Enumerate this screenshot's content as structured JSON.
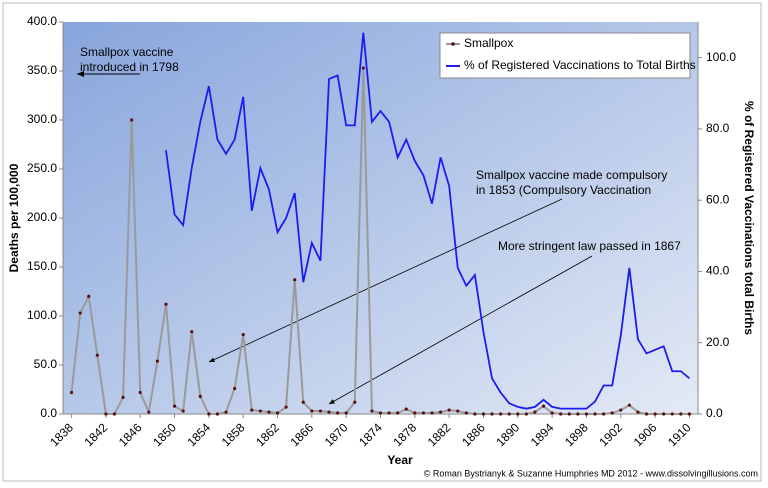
{
  "chart_data": {
    "type": "line",
    "x_label": "Year",
    "y_label": "Deaths per 100,000",
    "y2_label": "% of Registered Vaccinations total Births",
    "x": [
      1838,
      1839,
      1840,
      1841,
      1842,
      1843,
      1844,
      1845,
      1846,
      1847,
      1848,
      1849,
      1850,
      1851,
      1852,
      1853,
      1854,
      1855,
      1856,
      1857,
      1858,
      1859,
      1860,
      1861,
      1862,
      1863,
      1864,
      1865,
      1866,
      1867,
      1868,
      1869,
      1870,
      1871,
      1872,
      1873,
      1874,
      1875,
      1876,
      1877,
      1878,
      1879,
      1880,
      1881,
      1882,
      1883,
      1884,
      1885,
      1886,
      1887,
      1888,
      1889,
      1890,
      1891,
      1892,
      1893,
      1894,
      1895,
      1896,
      1897,
      1898,
      1899,
      1900,
      1901,
      1902,
      1903,
      1904,
      1905,
      1906,
      1907,
      1908,
      1909,
      1910
    ],
    "series": [
      {
        "name": "Smallpox",
        "color": "#9a9a9a",
        "marker_color": "#5a1010",
        "values": [
          22,
          103,
          120,
          60,
          0,
          0,
          17,
          300,
          22,
          2,
          54,
          112,
          8,
          3,
          84,
          18,
          0,
          0,
          2,
          26,
          81,
          4,
          3,
          2,
          1,
          7,
          137,
          12,
          3,
          3,
          2,
          1,
          1,
          12,
          353,
          3,
          1,
          1,
          1,
          5,
          1,
          1,
          1,
          2,
          4,
          3,
          1,
          0,
          0,
          0,
          0,
          0,
          0,
          0,
          2,
          8,
          1,
          0,
          0,
          0,
          0,
          0,
          0,
          1,
          4,
          9,
          2,
          0,
          0,
          0,
          0,
          0,
          0
        ]
      },
      {
        "name": "% of Registered Vaccinations to Total Births",
        "color": "#1c1cf0",
        "axis": "y2",
        "values": [
          null,
          null,
          null,
          null,
          null,
          null,
          null,
          null,
          null,
          null,
          null,
          74,
          56,
          53,
          69,
          82,
          92,
          77,
          73,
          77,
          89,
          57,
          69,
          63,
          51,
          55,
          62,
          37,
          48,
          43,
          94,
          95,
          81,
          81,
          107,
          82,
          85,
          82,
          72,
          77,
          71,
          67,
          59,
          72,
          64,
          41,
          36,
          39,
          23,
          10,
          6,
          3,
          2,
          1.5,
          2,
          4,
          2,
          1.5,
          1.5,
          1.5,
          1.5,
          3.5,
          8,
          8,
          22,
          41,
          21,
          17,
          18,
          19,
          12,
          12,
          10
        ]
      }
    ],
    "xlim": [
      1837,
      1911
    ],
    "xticks": [
      1838,
      1842,
      1846,
      1850,
      1854,
      1858,
      1862,
      1866,
      1870,
      1874,
      1878,
      1882,
      1886,
      1890,
      1894,
      1898,
      1902,
      1906,
      1910
    ],
    "ylim": [
      0,
      400
    ],
    "yticks": [
      {
        "value": 0,
        "label": "0.0"
      },
      {
        "value": 50,
        "label": "50.0"
      },
      {
        "value": 100,
        "label": "100.0"
      },
      {
        "value": 150,
        "label": "150.0"
      },
      {
        "value": 200,
        "label": "200.0"
      },
      {
        "value": 250,
        "label": "250.0"
      },
      {
        "value": 300,
        "label": "300.0"
      },
      {
        "value": 350,
        "label": "350.0"
      },
      {
        "value": 400,
        "label": "400.0"
      }
    ],
    "y2lim": [
      0,
      110
    ],
    "y2ticks": [
      {
        "value": 0,
        "label": "0.0"
      },
      {
        "value": 20,
        "label": "20.0"
      },
      {
        "value": 40,
        "label": "40.0"
      },
      {
        "value": 60,
        "label": "60.0"
      },
      {
        "value": 80,
        "label": "80.0"
      },
      {
        "value": 100,
        "label": "100.0"
      }
    ],
    "legend": "upper right",
    "annotations": [
      {
        "lines": [
          "Smallpox vaccine",
          "introduced in 1798"
        ]
      },
      {
        "lines": [
          "Smallpox vaccine made compulsory",
          "in 1853 (Compulsory Vaccination"
        ]
      },
      {
        "lines": [
          "More stringent law passed in 1867"
        ]
      }
    ],
    "credit": "© Roman Bystrianyk & Suzanne Humphries MD 2012 - www.dissolvingillusions.com"
  }
}
